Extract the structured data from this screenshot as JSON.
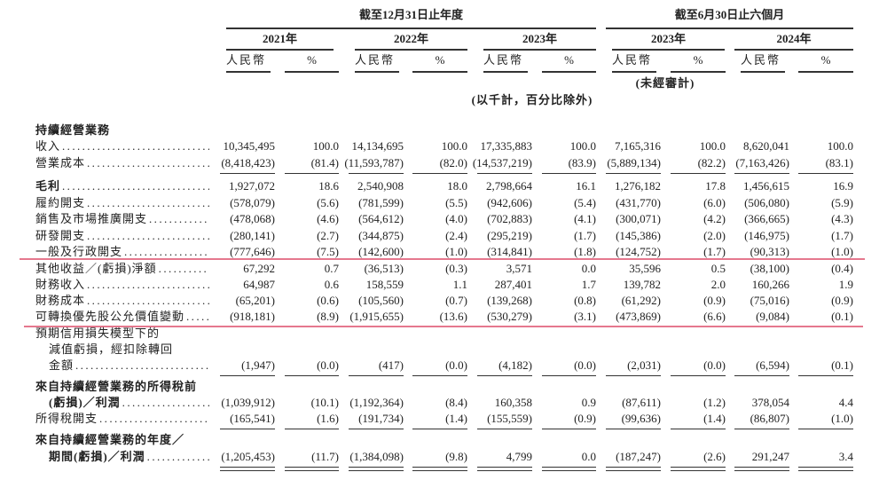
{
  "header": {
    "annual_group": "截至12月31日止年度",
    "interim_group": "截至6月30日止六個月",
    "years": [
      "2021年",
      "2022年",
      "2023年",
      "2023年",
      "2024年"
    ],
    "currency_label": "人民幣",
    "percent_label": "%",
    "unaudited": "(未經審計)",
    "units_note": "(以千計，百分比除外)"
  },
  "rows": [
    {
      "label": "持續經營業務",
      "bold": true,
      "values": []
    },
    {
      "label": "收入",
      "dots": true,
      "values": [
        "10,345,495",
        "100.0",
        "14,134,695",
        "100.0",
        "17,335,883",
        "100.0",
        "7,165,316",
        "100.0",
        "8,620,041",
        "100.0"
      ]
    },
    {
      "label": "營業成本",
      "dots": true,
      "values": [
        "(8,418,423)",
        "(81.4)",
        "(11,593,787)",
        "(82.0)",
        "(14,537,219)",
        "(83.9)",
        "(5,889,134)",
        "(82.2)",
        "(7,163,426)",
        "(83.1)"
      ]
    },
    {
      "label": "毛利",
      "bold": true,
      "dots": true,
      "values": [
        "1,927,072",
        "18.6",
        "2,540,908",
        "18.0",
        "2,798,664",
        "16.1",
        "1,276,182",
        "17.8",
        "1,456,615",
        "16.9"
      ]
    },
    {
      "label": "履約開支",
      "dots": true,
      "values": [
        "(578,079)",
        "(5.6)",
        "(781,599)",
        "(5.5)",
        "(942,606)",
        "(5.4)",
        "(431,770)",
        "(6.0)",
        "(506,080)",
        "(5.9)"
      ]
    },
    {
      "label": "銷售及市場推廣開支",
      "dots": true,
      "values": [
        "(478,068)",
        "(4.6)",
        "(564,612)",
        "(4.0)",
        "(702,883)",
        "(4.1)",
        "(300,071)",
        "(4.2)",
        "(366,665)",
        "(4.3)"
      ]
    },
    {
      "label": "研發開支",
      "dots": true,
      "values": [
        "(280,141)",
        "(2.7)",
        "(344,875)",
        "(2.4)",
        "(295,219)",
        "(1.7)",
        "(145,386)",
        "(2.0)",
        "(146,975)",
        "(1.7)"
      ]
    },
    {
      "label": "一般及行政開支",
      "dots": true,
      "values": [
        "(777,646)",
        "(7.5)",
        "(142,600)",
        "(1.0)",
        "(314,841)",
        "(1.8)",
        "(124,752)",
        "(1.7)",
        "(90,313)",
        "(1.0)"
      ]
    },
    {
      "label": "其他收益／(虧損)淨額",
      "dots": true,
      "values": [
        "67,292",
        "0.7",
        "(36,513)",
        "(0.3)",
        "3,571",
        "0.0",
        "35,596",
        "0.5",
        "(38,100)",
        "(0.4)"
      ]
    },
    {
      "label": "財務收入",
      "dots": true,
      "values": [
        "64,987",
        "0.6",
        "158,559",
        "1.1",
        "287,401",
        "1.7",
        "139,782",
        "2.0",
        "160,266",
        "1.9"
      ]
    },
    {
      "label": "財務成本",
      "dots": true,
      "values": [
        "(65,201)",
        "(0.6)",
        "(105,560)",
        "(0.7)",
        "(139,268)",
        "(0.8)",
        "(61,292)",
        "(0.9)",
        "(75,016)",
        "(0.9)"
      ]
    },
    {
      "label": "可轉換優先股公允價值變動",
      "dots": true,
      "values": [
        "(918,181)",
        "(8.9)",
        "(1,915,655)",
        "(13.6)",
        "(530,279)",
        "(3.1)",
        "(473,869)",
        "(6.6)",
        "(9,084)",
        "(0.1)"
      ]
    },
    {
      "label": "預期信用損失模型下的",
      "values": []
    },
    {
      "label": "減值虧損，經扣除轉回",
      "indent": true,
      "values": []
    },
    {
      "label": "金額",
      "indent": true,
      "dots": true,
      "values": [
        "(1,947)",
        "(0.0)",
        "(417)",
        "(0.0)",
        "(4,182)",
        "(0.0)",
        "(2,031)",
        "(0.0)",
        "(6,594)",
        "(0.1)"
      ]
    },
    {
      "label": "來自持續經營業務的所得稅前",
      "bold": true,
      "values": []
    },
    {
      "label": "(虧損)／利潤",
      "bold": true,
      "indent": true,
      "dots": true,
      "values": [
        "(1,039,912)",
        "(10.1)",
        "(1,192,364)",
        "(8.4)",
        "160,358",
        "0.9",
        "(87,611)",
        "(1.2)",
        "378,054",
        "4.4"
      ]
    },
    {
      "label": "所得稅開支",
      "dots": true,
      "values": [
        "(165,541)",
        "(1.6)",
        "(191,734)",
        "(1.4)",
        "(155,559)",
        "(0.9)",
        "(99,636)",
        "(1.4)",
        "(86,807)",
        "(1.0)"
      ]
    },
    {
      "label": "來自持續經營業務的年度／",
      "bold": true,
      "values": []
    },
    {
      "label": "期間(虧損)／利潤",
      "bold": true,
      "indent": true,
      "dots": true,
      "values": [
        "(1,205,453)",
        "(11.7)",
        "(1,384,098)",
        "(9.8)",
        "4,799",
        "0.0",
        "(187,247)",
        "(2.6)",
        "291,247",
        "3.4"
      ]
    }
  ],
  "colors": {
    "highlight_line": "#e0607a"
  }
}
